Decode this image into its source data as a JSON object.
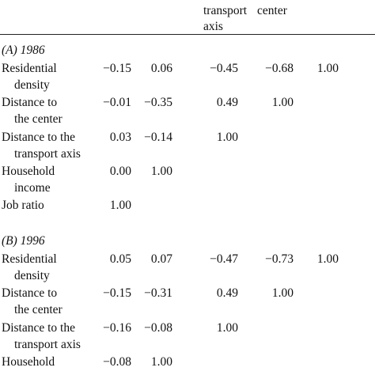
{
  "header": {
    "col4_line1": "transport",
    "col4_line2": "axis",
    "col5_line1": "center"
  },
  "sections": [
    {
      "title": "(A) 1986",
      "rows": [
        {
          "label_line1": "Residential",
          "label_line2": "density",
          "values": [
            "−0.15",
            "0.06",
            "−0.45",
            "−0.68",
            "1.00"
          ]
        },
        {
          "label_line1": "Distance to",
          "label_line2": "the center",
          "values": [
            "−0.01",
            "−0.35",
            "0.49",
            "1.00"
          ]
        },
        {
          "label_line1": "Distance to the",
          "label_line2": "transport axis",
          "values": [
            "0.03",
            "−0.14",
            "1.00"
          ]
        },
        {
          "label_line1": "Household",
          "label_line2": "income",
          "values": [
            "0.00",
            "1.00"
          ]
        },
        {
          "label_line1": "Job ratio",
          "label_line2": "",
          "values": [
            "1.00"
          ]
        }
      ]
    },
    {
      "title": "(B) 1996",
      "rows": [
        {
          "label_line1": "Residential",
          "label_line2": "density",
          "values": [
            "0.05",
            "0.07",
            "−0.47",
            "−0.73",
            "1.00"
          ]
        },
        {
          "label_line1": "Distance to",
          "label_line2": "the center",
          "values": [
            "−0.15",
            "−0.31",
            "0.49",
            "1.00"
          ]
        },
        {
          "label_line1": "Distance to the",
          "label_line2": "transport axis",
          "values": [
            "−0.16",
            "−0.08",
            "1.00"
          ]
        },
        {
          "label_line1": "Household",
          "label_line2": "",
          "values": [
            "−0.08",
            "1.00"
          ]
        }
      ]
    }
  ]
}
